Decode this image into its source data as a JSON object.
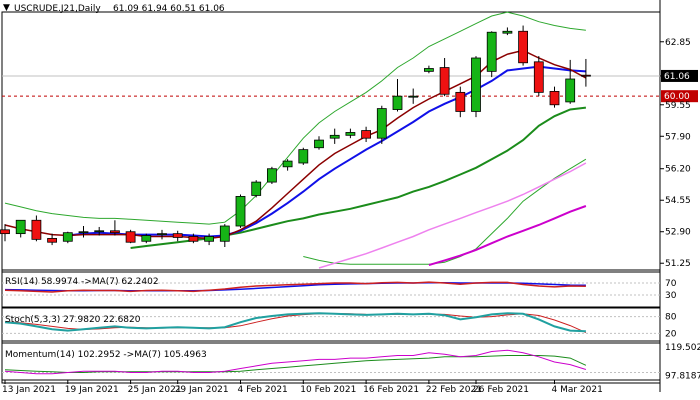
{
  "header": {
    "symbol": "USCRUDE.J21,Daily",
    "ohlc": "61.09 61.94 60.51 61.06"
  },
  "main_axis": {
    "ticks": [
      "62.85",
      "61.06",
      "59.55",
      "57.90",
      "56.20",
      "54.55",
      "52.90",
      "51.25"
    ],
    "current_price_label": "61.06",
    "level_label": "60.00"
  },
  "rsi_panel": {
    "label": "RSI(14) 58.9974  ->MA(7) 62.2402",
    "ticks": [
      "70",
      "30"
    ]
  },
  "stoch_panel": {
    "label": "Stoch(5,3,3) 27.9820 22.6820",
    "ticks": [
      "80",
      "20"
    ]
  },
  "momentum_panel": {
    "label": "Momentum(14) 102.2952  ->MA(7) 105.4963",
    "ticks": [
      "119.5027",
      "97.8187"
    ]
  },
  "x_axis": {
    "dates": [
      "13 Jan 2021",
      "19 Jan 2021",
      "25 Jan 2021",
      "29 Jan 2021",
      "4 Feb 2021",
      "10 Feb 2021",
      "16 Feb 2021",
      "22 Feb 2021",
      "26 Feb 2021",
      "4 Mar 2021"
    ]
  },
  "colors": {
    "bull": "#16b416",
    "bear": "#ee1111",
    "ma_short": "#8b0000",
    "ma_fast": "#1010e8",
    "ma_mid": "#1b8c1b",
    "ma_long": "#ee82ee",
    "ma_longest": "#cc00cc",
    "bollinger": "#2ea82e",
    "stoch_main": "#20a0a0",
    "level_line": "#c00000"
  },
  "chart_data": {
    "type": "candlestick",
    "title": "USCRUDE.J21,Daily",
    "ylim": [
      51.0,
      64.2
    ],
    "candles": [
      {
        "o": 53.0,
        "h": 53.3,
        "l": 52.4,
        "c": 52.8
      },
      {
        "o": 52.8,
        "h": 53.4,
        "l": 52.6,
        "c": 53.5
      },
      {
        "o": 53.5,
        "h": 53.75,
        "l": 52.4,
        "c": 52.5
      },
      {
        "o": 52.55,
        "h": 52.8,
        "l": 52.2,
        "c": 52.35
      },
      {
        "o": 52.4,
        "h": 52.9,
        "l": 52.3,
        "c": 52.85
      },
      {
        "o": 52.85,
        "h": 53.2,
        "l": 52.6,
        "c": 52.9
      },
      {
        "o": 52.9,
        "h": 53.15,
        "l": 52.7,
        "c": 52.95
      },
      {
        "o": 52.95,
        "h": 53.5,
        "l": 52.7,
        "c": 52.85
      },
      {
        "o": 52.9,
        "h": 53.0,
        "l": 52.3,
        "c": 52.35
      },
      {
        "o": 52.4,
        "h": 52.8,
        "l": 52.3,
        "c": 52.7
      },
      {
        "o": 52.75,
        "h": 53.0,
        "l": 52.5,
        "c": 52.8
      },
      {
        "o": 52.8,
        "h": 52.95,
        "l": 52.4,
        "c": 52.6
      },
      {
        "o": 52.65,
        "h": 52.8,
        "l": 52.3,
        "c": 52.4
      },
      {
        "o": 52.4,
        "h": 52.8,
        "l": 52.2,
        "c": 52.65
      },
      {
        "o": 52.4,
        "h": 53.3,
        "l": 52.1,
        "c": 53.2
      },
      {
        "o": 53.2,
        "h": 54.85,
        "l": 53.1,
        "c": 54.75
      },
      {
        "o": 54.8,
        "h": 55.6,
        "l": 54.7,
        "c": 55.5
      },
      {
        "o": 55.5,
        "h": 56.3,
        "l": 55.4,
        "c": 56.2
      },
      {
        "o": 56.3,
        "h": 56.7,
        "l": 56.1,
        "c": 56.6
      },
      {
        "o": 56.5,
        "h": 57.3,
        "l": 56.4,
        "c": 57.2
      },
      {
        "o": 57.3,
        "h": 57.9,
        "l": 57.2,
        "c": 57.7
      },
      {
        "o": 57.8,
        "h": 58.3,
        "l": 57.5,
        "c": 57.95
      },
      {
        "o": 57.95,
        "h": 58.3,
        "l": 57.8,
        "c": 58.1
      },
      {
        "o": 58.2,
        "h": 58.4,
        "l": 57.6,
        "c": 57.8
      },
      {
        "o": 57.8,
        "h": 59.5,
        "l": 57.5,
        "c": 59.35
      },
      {
        "o": 59.3,
        "h": 60.9,
        "l": 59.2,
        "c": 60.0
      },
      {
        "o": 60.0,
        "h": 60.4,
        "l": 59.6,
        "c": 60.0
      },
      {
        "o": 61.3,
        "h": 61.6,
        "l": 61.2,
        "c": 61.45
      },
      {
        "o": 61.5,
        "h": 62.0,
        "l": 60.0,
        "c": 60.1
      },
      {
        "o": 60.2,
        "h": 60.5,
        "l": 58.9,
        "c": 59.2
      },
      {
        "o": 59.2,
        "h": 62.1,
        "l": 58.9,
        "c": 62.0
      },
      {
        "o": 61.3,
        "h": 63.4,
        "l": 61.0,
        "c": 63.35
      },
      {
        "o": 63.3,
        "h": 63.6,
        "l": 63.2,
        "c": 63.4
      },
      {
        "o": 63.4,
        "h": 63.7,
        "l": 61.6,
        "c": 61.75
      },
      {
        "o": 61.8,
        "h": 62.1,
        "l": 60.0,
        "c": 60.2
      },
      {
        "o": 60.25,
        "h": 60.5,
        "l": 59.4,
        "c": 59.55
      },
      {
        "o": 59.7,
        "h": 61.9,
        "l": 59.6,
        "c": 60.9
      },
      {
        "o": 61.1,
        "h": 61.95,
        "l": 60.5,
        "c": 61.06
      }
    ],
    "ma_short": [
      53.25,
      53.05,
      52.9,
      52.75,
      52.7,
      52.75,
      52.75,
      52.75,
      52.75,
      52.65,
      52.65,
      52.65,
      52.6,
      52.55,
      52.65,
      53.0,
      53.45,
      54.15,
      54.9,
      55.65,
      56.4,
      57.0,
      57.45,
      57.9,
      58.25,
      58.85,
      59.4,
      59.85,
      60.25,
      60.65,
      61.05,
      61.8,
      62.2,
      62.4,
      62.0,
      61.65,
      61.4,
      60.95
    ],
    "ma_fast": [
      null,
      null,
      null,
      null,
      52.7,
      52.8,
      52.85,
      52.8,
      52.75,
      52.75,
      52.75,
      52.75,
      52.7,
      52.65,
      52.7,
      52.95,
      53.35,
      53.85,
      54.4,
      55.0,
      55.65,
      56.2,
      56.7,
      57.2,
      57.65,
      58.15,
      58.65,
      59.2,
      59.6,
      59.95,
      60.35,
      60.8,
      61.35,
      61.45,
      61.55,
      61.45,
      61.35,
      61.3
    ],
    "ma_mid": [
      null,
      null,
      null,
      null,
      null,
      null,
      null,
      null,
      52.05,
      52.15,
      52.25,
      52.35,
      52.45,
      52.55,
      52.7,
      52.85,
      53.05,
      53.25,
      53.45,
      53.6,
      53.8,
      53.95,
      54.1,
      54.3,
      54.5,
      54.7,
      55.0,
      55.25,
      55.55,
      55.9,
      56.25,
      56.7,
      57.15,
      57.7,
      58.45,
      58.95,
      59.3,
      59.4
    ],
    "ma_long": [
      null,
      null,
      null,
      null,
      null,
      null,
      null,
      null,
      null,
      null,
      null,
      null,
      null,
      null,
      null,
      null,
      null,
      null,
      null,
      null,
      51.0,
      51.25,
      51.5,
      51.75,
      52.05,
      52.35,
      52.65,
      53.0,
      53.3,
      53.6,
      53.9,
      54.2,
      54.5,
      54.85,
      55.25,
      55.65,
      56.05,
      56.5
    ],
    "ma_longest": [
      null,
      null,
      null,
      null,
      null,
      null,
      null,
      null,
      null,
      null,
      null,
      null,
      null,
      null,
      null,
      null,
      null,
      null,
      null,
      null,
      null,
      null,
      null,
      null,
      null,
      null,
      null,
      51.15,
      51.4,
      51.65,
      51.95,
      52.3,
      52.65,
      52.95,
      53.25,
      53.6,
      53.95,
      54.25
    ],
    "bb_upper": [
      54.4,
      54.2,
      54.0,
      53.85,
      53.75,
      53.65,
      53.6,
      53.6,
      53.55,
      53.5,
      53.45,
      53.4,
      53.35,
      53.3,
      53.4,
      54.0,
      54.8,
      55.8,
      56.8,
      57.8,
      58.6,
      59.2,
      59.7,
      60.2,
      60.8,
      61.5,
      62.0,
      62.6,
      63.0,
      63.4,
      63.8,
      64.2,
      64.4,
      64.2,
      63.9,
      63.7,
      63.55,
      63.45
    ],
    "bb_lower": [
      null,
      null,
      null,
      null,
      null,
      null,
      null,
      null,
      null,
      null,
      null,
      null,
      null,
      null,
      null,
      null,
      null,
      null,
      null,
      51.6,
      51.4,
      51.25,
      51.2,
      51.2,
      51.2,
      51.2,
      51.2,
      51.2,
      51.3,
      51.6,
      52.0,
      52.8,
      53.6,
      54.5,
      55.1,
      55.7,
      56.2,
      56.7
    ],
    "rsi": [
      46,
      44,
      42,
      40,
      44,
      46,
      45,
      45,
      42,
      45,
      46,
      44,
      42,
      46,
      50,
      56,
      60,
      62,
      64,
      66,
      68,
      70,
      70,
      68,
      71,
      72,
      70,
      73,
      70,
      66,
      70,
      72,
      72,
      65,
      60,
      57,
      60,
      59
    ],
    "rsi_ma": [
      48,
      47,
      46,
      45,
      44,
      44,
      45,
      45,
      44,
      44,
      44,
      44,
      44,
      45,
      47,
      49,
      52,
      55,
      58,
      61,
      64,
      66,
      67,
      68,
      69,
      70,
      70,
      71,
      71,
      70,
      70,
      70,
      70,
      69,
      67,
      65,
      63,
      62.2
    ],
    "stoch_k": [
      60,
      55,
      45,
      35,
      30,
      35,
      40,
      45,
      40,
      38,
      40,
      42,
      40,
      38,
      42,
      60,
      75,
      82,
      88,
      90,
      92,
      90,
      88,
      86,
      88,
      90,
      88,
      90,
      85,
      70,
      78,
      88,
      92,
      90,
      70,
      45,
      30,
      28
    ],
    "stoch_d": [
      62,
      58,
      52,
      45,
      38,
      34,
      36,
      40,
      42,
      40,
      39,
      40,
      40,
      40,
      40,
      47,
      60,
      72,
      82,
      87,
      90,
      91,
      90,
      88,
      87,
      88,
      88,
      89,
      88,
      82,
      78,
      80,
      86,
      90,
      84,
      68,
      48,
      22.7
    ],
    "momentum": [
      101,
      100,
      99,
      99,
      100,
      101,
      101,
      101,
      100,
      100,
      101,
      101,
      100,
      100,
      101,
      103,
      105,
      107,
      108,
      109,
      110,
      110,
      111,
      111,
      112,
      113,
      113,
      115,
      114,
      112,
      113,
      116,
      117,
      115,
      112,
      108,
      106,
      102.3
    ],
    "momentum_ma": [
      102,
      101.5,
      101,
      100.5,
      100,
      100,
      100.5,
      100.5,
      100.5,
      100.5,
      100.5,
      100.5,
      100.5,
      100.5,
      100.5,
      101,
      102,
      103,
      104,
      105,
      106,
      107,
      108,
      109,
      109.5,
      110,
      110.5,
      111,
      112,
      112,
      112,
      112.5,
      113,
      113,
      113,
      112.5,
      111,
      105.5
    ],
    "stoch_ylim": [
      0,
      100
    ],
    "rsi_ylim": [
      0,
      100
    ],
    "momentum_ylim": [
      95,
      121
    ],
    "level": 60.0,
    "x_dates": [
      "13 Jan 2021",
      "19 Jan 2021",
      "25 Jan 2021",
      "29 Jan 2021",
      "4 Feb 2021",
      "10 Feb 2021",
      "16 Feb 2021",
      "22 Feb 2021",
      "26 Feb 2021",
      "4 Mar 2021"
    ]
  }
}
